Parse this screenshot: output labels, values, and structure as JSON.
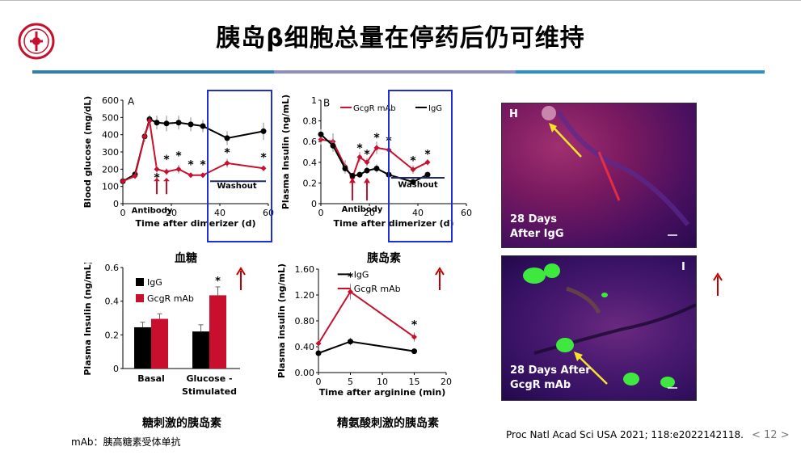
{
  "slide": {
    "title": "胰岛β细胞总量在停药后仍可维持",
    "page_number": "< 12 >",
    "footnote": "mAb：胰高糖素受体单抗",
    "reference": "Proc Natl Acad Sci USA 2021; 118:e2022142118.",
    "logo_icon": "hospital-seal-logo"
  },
  "captions": {
    "a": "血糖",
    "b": "胰岛素",
    "c": "糖刺激的胰岛素",
    "d": "精氨酸刺激的胰岛素"
  },
  "colors": {
    "red": "#c8102e",
    "black": "#000000",
    "washout_box": "#1f2fd6",
    "washout_line": "#1f2a6b",
    "arrow_red": "#c00000",
    "arrow_yellow": "#f5e32a"
  },
  "micrographs": {
    "h": {
      "letter": "H",
      "label1": "28 Days",
      "label2": "After IgG"
    },
    "i": {
      "letter": "I",
      "label1": "28 Days After",
      "label2": "GcgR mAb"
    }
  },
  "chart_data": [
    {
      "type": "line",
      "panel": "A",
      "xlabel": "Time after dimerizer (d)",
      "ylabel": "Blood glucose (mg/dL)",
      "xlim": [
        0,
        60
      ],
      "ylim": [
        0,
        600
      ],
      "xticks": [
        0,
        20,
        40,
        60
      ],
      "yticks": [
        0,
        100,
        200,
        300,
        400,
        500,
        600
      ],
      "annotations": [
        "Antibody",
        "Washout"
      ],
      "series": [
        {
          "name": "IgG",
          "color": "#000000",
          "x": [
            0,
            5,
            9,
            11,
            14,
            18,
            23,
            28,
            33,
            43,
            58
          ],
          "y": [
            130,
            170,
            390,
            490,
            470,
            465,
            470,
            460,
            450,
            380,
            420
          ],
          "err": [
            10,
            15,
            30,
            25,
            40,
            45,
            40,
            40,
            35,
            40,
            50
          ]
        },
        {
          "name": "GcgR mAb",
          "color": "#c8102e",
          "x": [
            0,
            5,
            9,
            11,
            14,
            18,
            23,
            28,
            33,
            43,
            58
          ],
          "y": [
            130,
            160,
            390,
            480,
            200,
            185,
            200,
            165,
            165,
            235,
            205
          ],
          "err": [
            10,
            15,
            30,
            20,
            25,
            20,
            25,
            15,
            15,
            25,
            15
          ]
        }
      ],
      "asterisks": [
        {
          "x": 14,
          "y": 130
        },
        {
          "x": 18,
          "y": 235
        },
        {
          "x": 23,
          "y": 255
        },
        {
          "x": 28,
          "y": 205
        },
        {
          "x": 33,
          "y": 205
        },
        {
          "x": 43,
          "y": 275
        },
        {
          "x": 58,
          "y": 245
        }
      ]
    },
    {
      "type": "line",
      "panel": "B",
      "xlabel": "Time after dimerizer (d)",
      "ylabel": "Plasma Insulin (ng/mL)",
      "xlim": [
        0,
        60
      ],
      "ylim": [
        0,
        1
      ],
      "xticks": [
        0,
        20,
        40,
        60
      ],
      "yticks": [
        "0",
        "0.2",
        "0.4",
        "0.6",
        "0.8",
        "1"
      ],
      "legend": "top",
      "annotations": [
        "Antibody",
        "Washout"
      ],
      "series": [
        {
          "name": "GcgR mAb",
          "color": "#c8102e",
          "x": [
            0,
            5,
            10,
            13,
            16,
            19,
            23,
            28,
            38,
            44
          ],
          "y": [
            0.62,
            0.6,
            0.36,
            0.25,
            0.45,
            0.4,
            0.54,
            0.52,
            0.33,
            0.4
          ],
          "err": [
            0.05,
            0.08,
            0.06,
            0.04,
            0.05,
            0.04,
            0.06,
            0.05,
            0.04,
            0.03
          ]
        },
        {
          "name": "IgG",
          "color": "#000000",
          "x": [
            0,
            5,
            10,
            13,
            16,
            19,
            23,
            28,
            38,
            44
          ],
          "y": [
            0.67,
            0.56,
            0.34,
            0.27,
            0.28,
            0.32,
            0.34,
            0.28,
            0.21,
            0.28
          ],
          "err": [
            0.05,
            0.06,
            0.05,
            0.03,
            0.03,
            0.03,
            0.04,
            0.03,
            0.03,
            0.03
          ]
        }
      ],
      "asterisks": [
        {
          "x": 16,
          "y": 0.5
        },
        {
          "x": 19,
          "y": 0.44
        },
        {
          "x": 23,
          "y": 0.6
        },
        {
          "x": 28,
          "y": 0.57
        },
        {
          "x": 38,
          "y": 0.38
        },
        {
          "x": 44,
          "y": 0.44
        }
      ]
    },
    {
      "type": "bar",
      "panel": "C",
      "ylabel": "Plasma Insulin (ng/mL)",
      "categories": [
        "Basal",
        "Glucose -\nStimulated"
      ],
      "category_line1": [
        "Basal",
        "Glucose -"
      ],
      "category_line2": [
        "",
        "Stimulated"
      ],
      "ylim": [
        0,
        0.6
      ],
      "yticks": [
        "0",
        "0.2",
        "0.4",
        "0.6"
      ],
      "series": [
        {
          "name": "IgG",
          "color": "#000000",
          "values": [
            0.245,
            0.22
          ],
          "err": [
            0.03,
            0.04
          ]
        },
        {
          "name": "GcgR mAb",
          "color": "#c8102e",
          "values": [
            0.295,
            0.435
          ],
          "err": [
            0.03,
            0.05
          ]
        }
      ],
      "asterisks": [
        {
          "category": 1,
          "series": 1,
          "label": "*"
        }
      ]
    },
    {
      "type": "line",
      "panel": "D",
      "xlabel": "Time after arginine (min)",
      "ylabel": "Plasma insulin (ng/mL)",
      "xlim": [
        0,
        20
      ],
      "ylim": [
        0,
        1.6
      ],
      "xticks": [
        0,
        5,
        10,
        15,
        20
      ],
      "yticks": [
        "0.00",
        "0.40",
        "0.80",
        "1.20",
        "1.60"
      ],
      "series": [
        {
          "name": "IgG",
          "color": "#000000",
          "x": [
            0,
            5,
            15
          ],
          "y": [
            0.3,
            0.48,
            0.33
          ],
          "err": [
            0.04,
            0.06,
            0.03
          ]
        },
        {
          "name": "GcgR mAb",
          "color": "#c8102e",
          "x": [
            0,
            5,
            15
          ],
          "y": [
            0.45,
            1.25,
            0.55
          ],
          "err": [
            0.05,
            0.12,
            0.07
          ]
        }
      ],
      "asterisks": [
        {
          "x": 5,
          "y": 1.42
        },
        {
          "x": 15,
          "y": 0.68
        }
      ]
    }
  ]
}
